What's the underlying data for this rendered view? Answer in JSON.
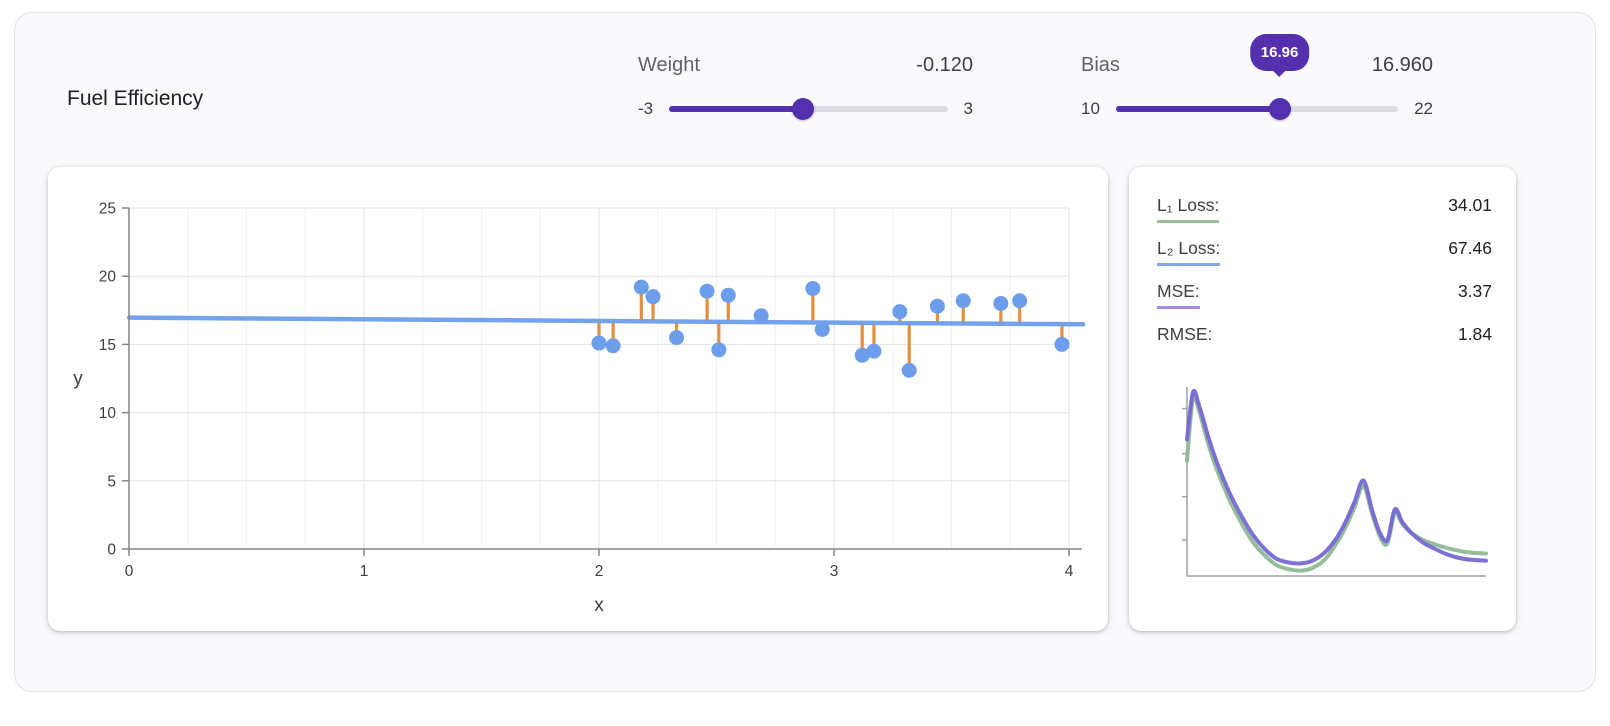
{
  "app": {
    "title": "Fuel Efficiency"
  },
  "controls": {
    "weight": {
      "label": "Weight",
      "value_display": "-0.120",
      "value": -0.12,
      "min": -3,
      "max": 3,
      "min_label": "-3",
      "max_label": "3"
    },
    "bias": {
      "label": "Bias",
      "value_display": "16.960",
      "value": 16.96,
      "min": 10,
      "max": 22,
      "min_label": "10",
      "max_label": "22",
      "tooltip": "16.96"
    }
  },
  "metrics": {
    "rows": [
      {
        "label": "L₁ Loss:",
        "value": "34.01",
        "underline": "#94bd9b"
      },
      {
        "label": "L₂ Loss:",
        "value": "67.46",
        "underline": "#83a6e3"
      },
      {
        "label": "MSE:",
        "value": "3.37",
        "underline": "#a78bdc"
      },
      {
        "label": "RMSE:",
        "value": "1.84",
        "underline": "none"
      }
    ]
  },
  "colors": {
    "accent_purple": "#5530ae",
    "point_blue": "#6d9eeb",
    "residual_orange": "#e2903e",
    "loss_green": "#8fb996",
    "loss_purple": "#7668d4"
  },
  "chart_data": [
    {
      "type": "scatter",
      "title": "",
      "xlabel": "x",
      "ylabel": "y",
      "xlim": [
        0,
        4
      ],
      "ylim": [
        0,
        25
      ],
      "x_ticks": [
        0,
        1,
        2,
        3,
        4
      ],
      "y_ticks": [
        0,
        5,
        10,
        15,
        20,
        25
      ],
      "x_minor_step": 0.25,
      "grid": true,
      "points": [
        [
          2.0,
          15.1
        ],
        [
          2.06,
          14.9
        ],
        [
          2.18,
          19.2
        ],
        [
          2.23,
          18.5
        ],
        [
          2.33,
          15.5
        ],
        [
          2.46,
          18.9
        ],
        [
          2.51,
          14.6
        ],
        [
          2.55,
          18.6
        ],
        [
          2.69,
          17.1
        ],
        [
          2.91,
          19.1
        ],
        [
          2.95,
          16.1
        ],
        [
          3.12,
          14.2
        ],
        [
          3.17,
          14.5
        ],
        [
          3.28,
          17.4
        ],
        [
          3.32,
          13.1
        ],
        [
          3.44,
          17.8
        ],
        [
          3.55,
          18.2
        ],
        [
          3.71,
          18.0
        ],
        [
          3.79,
          18.2
        ],
        [
          3.97,
          15.0
        ]
      ],
      "model_line": {
        "weight": -0.12,
        "bias": 16.96
      },
      "point_color": "#6d9eeb",
      "line_color": "#6d9eeb",
      "residual_color": "#e2903e"
    },
    {
      "type": "line",
      "title": "loss curves",
      "xlim": [
        0,
        1
      ],
      "ylim": [
        0,
        10.5
      ],
      "x": [
        0,
        0.02,
        0.04,
        0.07,
        0.1,
        0.14,
        0.18,
        0.22,
        0.26,
        0.3,
        0.34,
        0.38,
        0.42,
        0.46,
        0.5,
        0.53,
        0.56,
        0.59,
        0.62,
        0.645,
        0.67,
        0.695,
        0.72,
        0.75,
        0.79,
        0.83,
        0.87,
        0.91,
        0.95,
        1.0
      ],
      "series": [
        {
          "name": "L1 loss",
          "color": "#8fb996",
          "y": [
            6.4,
            9.9,
            9.2,
            7.4,
            5.9,
            4.3,
            3.0,
            1.9,
            1.15,
            0.6,
            0.38,
            0.3,
            0.45,
            0.9,
            1.8,
            2.7,
            3.8,
            5.0,
            3.4,
            2.2,
            1.8,
            3.5,
            2.9,
            2.4,
            2.0,
            1.75,
            1.55,
            1.4,
            1.3,
            1.25
          ]
        },
        {
          "name": "MSE loss",
          "color": "#7668d4",
          "y": [
            7.6,
            10.2,
            9.5,
            7.8,
            6.3,
            4.7,
            3.4,
            2.3,
            1.5,
            0.95,
            0.75,
            0.7,
            0.85,
            1.3,
            2.1,
            3.0,
            4.1,
            5.3,
            3.6,
            2.4,
            2.0,
            3.7,
            3.0,
            2.4,
            1.85,
            1.5,
            1.2,
            1.0,
            0.9,
            0.85
          ]
        }
      ]
    }
  ]
}
